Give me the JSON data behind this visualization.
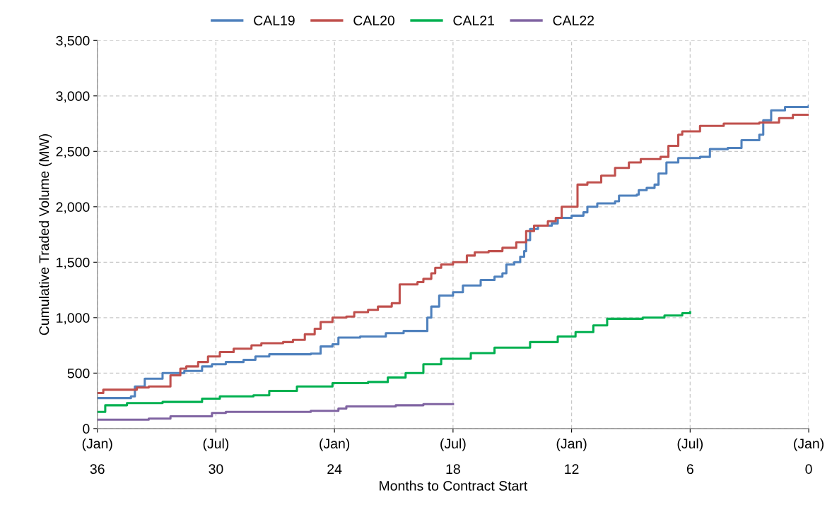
{
  "chart_data": {
    "type": "step",
    "xlabel": "Months to Contract Start",
    "ylabel": "Cumulative Traded Volume (MW)",
    "xlim": [
      36,
      0
    ],
    "ylim": [
      0,
      3500
    ],
    "xticks": [
      36,
      30,
      24,
      18,
      12,
      6,
      0
    ],
    "annotations": [
      "(Jan)",
      "(Jul)",
      "(Jan)",
      "(Jul)",
      "(Jan)",
      "(Jul)",
      "(Jan)"
    ],
    "yticks": [
      {
        "value": 0,
        "label": "0"
      },
      {
        "value": 500,
        "label": "500"
      },
      {
        "value": 1000,
        "label": "1,000"
      },
      {
        "value": 1500,
        "label": "1,500"
      },
      {
        "value": 2000,
        "label": "2,000"
      },
      {
        "value": 2500,
        "label": "2,500"
      },
      {
        "value": 3000,
        "label": "3,000"
      },
      {
        "value": 3500,
        "label": "3,500"
      }
    ],
    "grid": true,
    "legend": "top",
    "line_style": "solid",
    "series": [
      {
        "name": "CAL19",
        "color": "#4f81bd",
        "x": [
          36,
          34.3,
          34.1,
          33.6,
          32.7,
          31.6,
          30.7,
          30.2,
          29.5,
          28.6,
          28,
          27.3,
          25.2,
          24.7,
          24.1,
          23.8,
          22.7,
          21.4,
          20.5,
          19.3,
          19.1,
          18.7,
          18,
          17.5,
          16.6,
          15.9,
          15.5,
          15.3,
          14.9,
          14.6,
          14.4,
          14.3,
          14.1,
          13.7,
          13,
          12.7,
          12,
          11.4,
          11.2,
          10.7,
          9.8,
          9.6,
          8.7,
          8.6,
          8.2,
          7.8,
          7.6,
          7.2,
          6.6,
          5.5,
          5,
          4.1,
          3.4,
          2.5,
          2.3,
          1.9,
          1.2,
          0
        ],
        "values": [
          275,
          290,
          380,
          450,
          500,
          520,
          560,
          580,
          600,
          620,
          650,
          670,
          675,
          740,
          760,
          820,
          830,
          860,
          880,
          1000,
          1100,
          1200,
          1230,
          1290,
          1340,
          1370,
          1400,
          1480,
          1500,
          1550,
          1600,
          1700,
          1800,
          1830,
          1850,
          1900,
          1920,
          1950,
          2000,
          2030,
          2050,
          2100,
          2110,
          2150,
          2170,
          2200,
          2300,
          2400,
          2440,
          2450,
          2520,
          2530,
          2600,
          2650,
          2780,
          2870,
          2900,
          2910
        ]
      },
      {
        "name": "CAL20",
        "color": "#c0504d",
        "x": [
          36,
          35.7,
          34,
          33.4,
          32.3,
          31.8,
          31.5,
          30.9,
          30.4,
          29.8,
          29.1,
          28.2,
          27.7,
          26.6,
          26.1,
          25.5,
          25,
          24.7,
          24.1,
          23.4,
          23,
          22.3,
          21.8,
          21.1,
          20.7,
          19.8,
          19.5,
          19.1,
          18.9,
          18.6,
          18,
          17.3,
          16.9,
          16.2,
          15.5,
          14.8,
          14.3,
          13.9,
          13.2,
          12.8,
          12.5,
          11.7,
          11.2,
          10.5,
          9.8,
          9.1,
          8.5,
          7.5,
          7.1,
          6.6,
          6.4,
          5.5,
          4.3,
          2.5,
          1.5,
          0.8,
          0
        ],
        "values": [
          320,
          350,
          370,
          380,
          480,
          540,
          560,
          600,
          650,
          690,
          720,
          750,
          770,
          780,
          800,
          850,
          900,
          960,
          1000,
          1010,
          1050,
          1070,
          1100,
          1130,
          1300,
          1320,
          1350,
          1400,
          1450,
          1480,
          1500,
          1560,
          1590,
          1600,
          1630,
          1680,
          1780,
          1830,
          1870,
          1900,
          2000,
          2200,
          2220,
          2280,
          2350,
          2400,
          2430,
          2450,
          2550,
          2650,
          2680,
          2730,
          2750,
          2760,
          2800,
          2830,
          2830
        ]
      },
      {
        "name": "CAL21",
        "color": "#00b050",
        "x": [
          36,
          35.6,
          34.5,
          32.7,
          30.7,
          29.8,
          28.1,
          27.3,
          25.9,
          24.1,
          22.3,
          21.3,
          20.4,
          19.5,
          18.6,
          17.1,
          15.9,
          14.1,
          12.7,
          11.8,
          10.9,
          10.2,
          8.4,
          7.3,
          6.4,
          6
        ],
        "values": [
          150,
          210,
          230,
          240,
          270,
          290,
          300,
          340,
          380,
          410,
          420,
          460,
          500,
          580,
          630,
          680,
          730,
          780,
          830,
          870,
          930,
          990,
          1000,
          1020,
          1040,
          1050
        ]
      },
      {
        "name": "CAL22",
        "color": "#8064a2",
        "x": [
          36,
          33.4,
          32.3,
          30.2,
          29.5,
          25.2,
          23.8,
          23.4,
          20.9,
          19.5,
          18
        ],
        "values": [
          80,
          90,
          110,
          140,
          150,
          160,
          180,
          200,
          210,
          220,
          220
        ]
      }
    ]
  }
}
